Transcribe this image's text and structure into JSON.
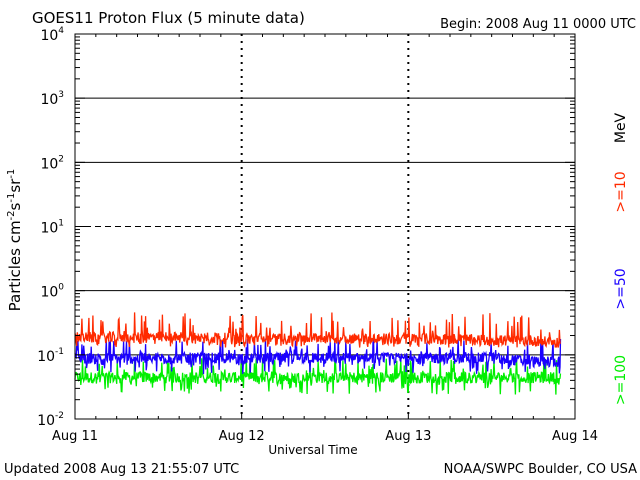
{
  "header": {
    "title": "GOES11 Proton Flux (5 minute data)",
    "begin": "Begin: 2008 Aug 11 0000 UTC"
  },
  "footer": {
    "updated": "Updated 2008 Aug 13 21:55:07 UTC",
    "credit": "NOAA/SWPC Boulder, CO USA"
  },
  "chart_data": {
    "type": "line",
    "title": "GOES11 Proton Flux (5 minute data)",
    "xlabel": "Universal Time",
    "ylabel": "Particles cm-2s-1sr-1",
    "yscale": "log",
    "ylim": [
      0.01,
      10000
    ],
    "xlim": [
      "2008-08-11 00:00",
      "2008-08-14 00:00"
    ],
    "x_ticks": [
      "Aug 11",
      "Aug 12",
      "Aug 13",
      "Aug 14"
    ],
    "y_ticks": [
      {
        "base": "10",
        "exp": "4"
      },
      {
        "base": "10",
        "exp": "3"
      },
      {
        "base": "10",
        "exp": "2"
      },
      {
        "base": "10",
        "exp": "1"
      },
      {
        "base": "10",
        "exp": "0"
      },
      {
        "base": "10",
        "exp": "-1"
      },
      {
        "base": "10",
        "exp": "-2"
      }
    ],
    "units_label": "MeV",
    "data_end": "2008-08-13 21:55",
    "series": [
      {
        "name": ">=10",
        "color": "#ff2a00",
        "x": [
          "Aug 11 00:00",
          "Aug 11 06:00",
          "Aug 11 12:00",
          "Aug 11 18:00",
          "Aug 12 00:00",
          "Aug 12 06:00",
          "Aug 12 12:00",
          "Aug 12 18:00",
          "Aug 13 00:00",
          "Aug 13 06:00",
          "Aug 13 12:00",
          "Aug 13 18:00",
          "Aug 13 21:55"
        ],
        "values": [
          0.19,
          0.19,
          0.19,
          0.19,
          0.18,
          0.18,
          0.19,
          0.18,
          0.18,
          0.18,
          0.17,
          0.17,
          0.15
        ],
        "range_min": 0.13,
        "range_max": 0.46
      },
      {
        "name": ">=50",
        "color": "#1a00ff",
        "x": [
          "Aug 11 00:00",
          "Aug 11 06:00",
          "Aug 11 12:00",
          "Aug 11 18:00",
          "Aug 12 00:00",
          "Aug 12 06:00",
          "Aug 12 12:00",
          "Aug 12 18:00",
          "Aug 13 00:00",
          "Aug 13 06:00",
          "Aug 13 12:00",
          "Aug 13 18:00",
          "Aug 13 21:55"
        ],
        "values": [
          0.09,
          0.09,
          0.09,
          0.09,
          0.09,
          0.09,
          0.09,
          0.09,
          0.09,
          0.09,
          0.09,
          0.08,
          0.08
        ],
        "range_min": 0.05,
        "range_max": 0.18
      },
      {
        "name": ">=100",
        "color": "#00ee00",
        "x": [
          "Aug 11 00:00",
          "Aug 11 06:00",
          "Aug 11 12:00",
          "Aug 11 18:00",
          "Aug 12 00:00",
          "Aug 12 06:00",
          "Aug 12 12:00",
          "Aug 12 18:00",
          "Aug 13 00:00",
          "Aug 13 06:00",
          "Aug 13 12:00",
          "Aug 13 18:00",
          "Aug 13 21:55"
        ],
        "values": [
          0.045,
          0.045,
          0.045,
          0.045,
          0.045,
          0.045,
          0.045,
          0.045,
          0.045,
          0.045,
          0.045,
          0.045,
          0.045
        ],
        "range_min": 0.024,
        "range_max": 0.09
      }
    ]
  }
}
